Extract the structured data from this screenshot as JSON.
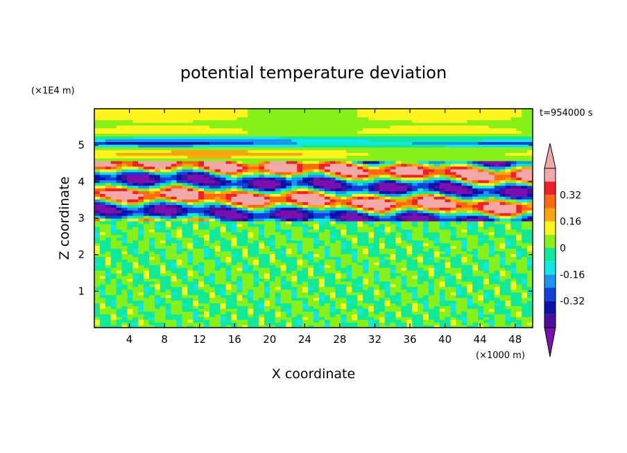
{
  "chart_data": {
    "type": "heatmap",
    "title": "potential temperature deviation",
    "xlabel": "X coordinate",
    "ylabel": "Z coordinate",
    "x_unit": "(×1000 m)",
    "y_unit": "(×1E4 m)",
    "time_label": "t=954000 s",
    "xlim": [
      0,
      50
    ],
    "ylim": [
      0,
      6
    ],
    "x_ticks": [
      4,
      8,
      12,
      16,
      20,
      24,
      28,
      32,
      36,
      40,
      44,
      48
    ],
    "y_ticks": [
      1,
      2,
      3,
      4,
      5
    ],
    "colorbar": {
      "levels": [
        -0.48,
        -0.4,
        -0.32,
        -0.24,
        -0.16,
        -0.08,
        0,
        0.08,
        0.16,
        0.24,
        0.32,
        0.4,
        0.48
      ],
      "colors": [
        "#7a10b0",
        "#4b0f9e",
        "#0a12a8",
        "#1240d8",
        "#1a96f0",
        "#10e8e8",
        "#10e89a",
        "#86f018",
        "#fff51c",
        "#ffa510",
        "#ff6a10",
        "#f0202a",
        "#f0a8a8",
        "#f0a8a8"
      ],
      "tick_labels": [
        "0.32",
        "0.16",
        "0",
        "-0.16",
        "-0.32"
      ],
      "tick_values": [
        0.32,
        0.16,
        0,
        -0.16,
        -0.32
      ],
      "extend": "both"
    }
  }
}
